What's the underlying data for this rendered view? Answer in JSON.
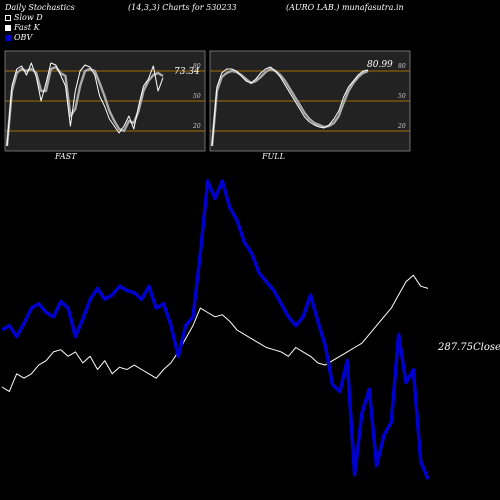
{
  "header": {
    "title": "Daily Stochastics",
    "params": "(14,3,3) Charts for 530233",
    "name": "(AURO LAB.) munafasutra.in"
  },
  "legend": [
    {
      "label": "Slow  D",
      "color": "#ffffff",
      "style": "outline"
    },
    {
      "label": "Fast K",
      "color": "#ffffff",
      "style": "filled"
    },
    {
      "label": "OBV",
      "color": "#0000cc",
      "style": "filled"
    }
  ],
  "colors": {
    "background": "#000000",
    "panel": "#222222",
    "level_line": "#cc8800",
    "obv": "#0000cc",
    "price": "#ffffff"
  },
  "chart_data": [
    {
      "type": "line",
      "name": "FAST",
      "label": "FAST",
      "ylim": [
        0,
        100
      ],
      "levels": [
        20,
        50,
        80
      ],
      "last_value_label": "73.34",
      "series": [
        {
          "name": "Slow  D",
          "values": [
            5,
            60,
            78,
            82,
            80,
            82,
            78,
            60,
            60,
            82,
            84,
            78,
            75,
            35,
            42,
            65,
            80,
            82,
            80,
            68,
            55,
            40,
            30,
            22,
            20,
            30,
            28,
            40,
            60,
            70,
            76,
            78,
            75
          ]
        },
        {
          "name": "Fast K",
          "values": [
            5,
            65,
            82,
            85,
            76,
            88,
            74,
            50,
            68,
            88,
            86,
            76,
            65,
            25,
            60,
            80,
            86,
            84,
            76,
            55,
            45,
            32,
            25,
            18,
            25,
            35,
            22,
            45,
            65,
            72,
            85,
            60,
            73.34
          ]
        }
      ]
    },
    {
      "type": "line",
      "name": "FULL",
      "label": "FULL",
      "ylim": [
        0,
        100
      ],
      "levels": [
        20,
        50,
        80
      ],
      "last_value_label": "80.99",
      "series": [
        {
          "name": "Slow  D",
          "values": [
            5,
            60,
            74,
            78,
            80,
            79,
            76,
            72,
            68,
            70,
            74,
            79,
            82,
            80,
            76,
            70,
            62,
            54,
            46,
            38,
            32,
            28,
            26,
            24,
            25,
            28,
            35,
            48,
            60,
            68,
            74,
            78,
            80
          ]
        },
        {
          "name": "Fast K",
          "values": [
            5,
            64,
            78,
            82,
            82,
            80,
            75,
            70,
            68,
            72,
            78,
            82,
            84,
            80,
            74,
            66,
            58,
            50,
            42,
            34,
            29,
            26,
            24,
            23,
            26,
            32,
            40,
            54,
            64,
            70,
            76,
            80,
            80.99
          ]
        }
      ]
    },
    {
      "type": "line",
      "name": "Price & OBV",
      "last_price_label": "287.75",
      "last_price_suffix": "Close",
      "series": [
        {
          "name": "OBV",
          "values": [
            50,
            52,
            47,
            53,
            60,
            62,
            58,
            56,
            63,
            60,
            47,
            55,
            64,
            69,
            64,
            66,
            70,
            68,
            67,
            64,
            70,
            60,
            62,
            52,
            38,
            52,
            56,
            85,
            118,
            110,
            118,
            106,
            100,
            90,
            85,
            76,
            72,
            68,
            62,
            56,
            52,
            56,
            66,
            54,
            43,
            25,
            22,
            36,
            -16,
            12,
            23,
            -12,
            2,
            8,
            48,
            26,
            32,
            -10,
            -18
          ]
        },
        {
          "name": "Price",
          "values": [
            24,
            22,
            30,
            28,
            30,
            34,
            36,
            40,
            41,
            38,
            40,
            35,
            38,
            32,
            36,
            30,
            33,
            32,
            34,
            32,
            30,
            28,
            32,
            35,
            40,
            46,
            52,
            60,
            58,
            56,
            57,
            54,
            50,
            48,
            46,
            44,
            42,
            41,
            40,
            38,
            42,
            40,
            38,
            35,
            34,
            36,
            38,
            40,
            42,
            44,
            48,
            52,
            56,
            60,
            66,
            72,
            75,
            70,
            69
          ]
        }
      ]
    }
  ]
}
